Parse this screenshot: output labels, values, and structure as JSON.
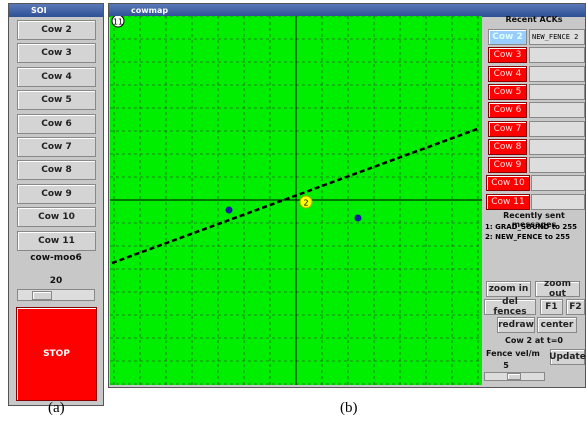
{
  "left_window": {
    "title": "SOI",
    "cow_buttons": [
      "Cow 2",
      "Cow 3",
      "Cow 4",
      "Cow 5",
      "Cow 6",
      "Cow 7",
      "Cow 8",
      "Cow 9",
      "Cow 10",
      "Cow 11"
    ],
    "label": "cow-moo6",
    "slider_value": 20,
    "stop": "STOP"
  },
  "map_window": {
    "title": "cowmap",
    "map": {
      "corner_label": "11",
      "marker_label": "2"
    },
    "panel": {
      "acks_title": "Recent ACKs",
      "ack_buttons": [
        "Cow 2",
        "Cow 3",
        "Cow 4",
        "Cow 5",
        "Cow 6",
        "Cow 7",
        "Cow 8",
        "Cow 9",
        "Cow 10",
        "Cow 11"
      ],
      "ack_messages": [
        "NEW_FENCE 2"
      ],
      "sent_title": "Recently sent messages",
      "sent_messages": [
        "1: GRAD_SOUND to 255",
        "2: NEW_FENCE to 255"
      ],
      "buttons": {
        "zoom_in": "zoom in",
        "zoom_out": "zoom out",
        "del_fences": "del fences",
        "f1": "F1",
        "f2": "F2",
        "redraw": "redraw",
        "center": "center",
        "update": "Update"
      },
      "status": "Cow 2 at t=0",
      "fence_label": "Fence vel/m",
      "fence_value": 5
    }
  },
  "captions": [
    "(a)",
    "(b)"
  ]
}
